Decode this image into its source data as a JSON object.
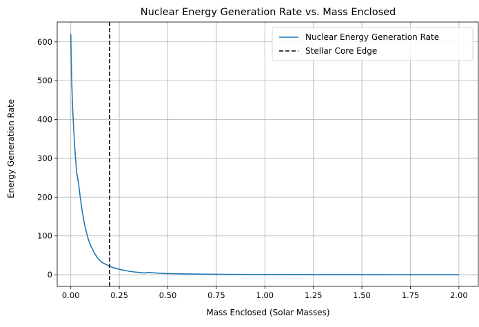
{
  "chart_data": {
    "type": "line",
    "title": "Nuclear Energy Generation Rate vs. Mass Enclosed",
    "xlabel": "Mass Enclosed (Solar Masses)",
    "ylabel": "Energy Generation Rate",
    "xlim": [
      -0.07,
      2.1
    ],
    "ylim": [
      -30,
      651
    ],
    "xticks": [
      "0.00",
      "0.25",
      "0.50",
      "0.75",
      "1.00",
      "1.25",
      "1.50",
      "1.75",
      "2.00"
    ],
    "yticks": [
      "0",
      "100",
      "200",
      "300",
      "400",
      "500",
      "600"
    ],
    "grid": true,
    "legend_position": "top-right",
    "series": [
      {
        "name": "Nuclear Energy Generation Rate",
        "color": "#1f77b4",
        "style": "solid",
        "x": [
          0.0,
          0.001,
          0.002,
          0.004,
          0.006,
          0.008,
          0.01,
          0.015,
          0.02,
          0.025,
          0.03,
          0.04,
          0.05,
          0.06,
          0.07,
          0.08,
          0.09,
          0.1,
          0.12,
          0.14,
          0.16,
          0.18,
          0.2,
          0.22,
          0.25,
          0.28,
          0.3,
          0.33,
          0.36,
          0.38,
          0.4,
          0.45,
          0.5,
          0.6,
          0.7,
          0.8,
          1.0,
          1.25,
          1.5,
          1.75,
          2.0
        ],
        "y": [
          620,
          590,
          560,
          515,
          480,
          450,
          425,
          375,
          330,
          295,
          265,
          235,
          195,
          160,
          132,
          110,
          92,
          78,
          57,
          42,
          32,
          27,
          22,
          18,
          14,
          11,
          9,
          7,
          5.5,
          4.5,
          6,
          4,
          3,
          2,
          1.5,
          1,
          0.6,
          0.3,
          0.2,
          0.1,
          0.05
        ]
      },
      {
        "name": "Stellar Core Edge",
        "color": "#000000",
        "style": "dashed",
        "vline_x": 0.2
      }
    ]
  }
}
